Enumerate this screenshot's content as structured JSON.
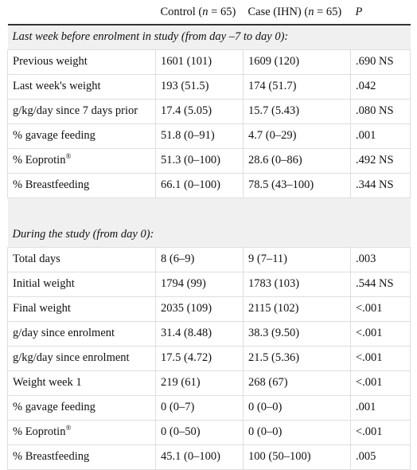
{
  "header": {
    "col1": "",
    "control_prefix": "Control (",
    "control_n": "n",
    "control_suffix": " = 65)",
    "case_prefix": "Case (IHN) (",
    "case_n": "n",
    "case_suffix": " = 65)",
    "p": "P"
  },
  "sections": [
    {
      "title": "Last week before enrolment in study (from day –7 to day 0):",
      "rows": [
        {
          "label": "Previous weight",
          "control": "1601 (101)",
          "case": "1609 (120)",
          "p": ".690 NS"
        },
        {
          "label": "Last week's weight",
          "control": "193 (51.5)",
          "case": "174 (51.7)",
          "p": ".042"
        },
        {
          "label": "g/kg/day since 7 days prior",
          "control": "17.4 (5.05)",
          "case": "15.7 (5.43)",
          "p": ".080 NS"
        },
        {
          "label": "% gavage feeding",
          "control": "51.8 (0–91)",
          "case": "4.7 (0–29)",
          "p": ".001"
        },
        {
          "label": "% Eoprotin",
          "sup": "®",
          "control": "51.3 (0–100)",
          "case": "28.6 (0–86)",
          "p": ".492 NS"
        },
        {
          "label": "% Breastfeeding",
          "control": "66.1 (0–100)",
          "case": "78.5 (43–100)",
          "p": ".344 NS"
        }
      ]
    },
    {
      "title": "During the study (from day 0):",
      "rows": [
        {
          "label": "Total days",
          "control": "8 (6–9)",
          "case": "9 (7–11)",
          "p": ".003"
        },
        {
          "label": "Initial weight",
          "control": "1794 (99)",
          "case": "1783 (103)",
          "p": ".544 NS"
        },
        {
          "label": "Final weight",
          "control": "2035 (109)",
          "case": "2115 (102)",
          "p": "<.001"
        },
        {
          "label": "g/day since enrolment",
          "control": "31.4 (8.48)",
          "case": "38.3 (9.50)",
          "p": "<.001"
        },
        {
          "label": "g/kg/day since enrolment",
          "control": "17.5 (4.72)",
          "case": "21.5 (5.36)",
          "p": "<.001"
        },
        {
          "label": "Weight week 1",
          "control": "219 (61)",
          "case": "268 (67)",
          "p": "<.001"
        },
        {
          "label": "% gavage feeding",
          "control": "0 (0–7)",
          "case": "0 (0–0)",
          "p": ".001"
        },
        {
          "label": "% Eoprotin",
          "sup": "®",
          "control": "0 (0–50)",
          "case": "0 (0–0)",
          "p": "<.001"
        },
        {
          "label": "% Breastfeeding",
          "control": "45.1 (0–100)",
          "case": "100 (50–100)",
          "p": ".005"
        }
      ]
    }
  ]
}
